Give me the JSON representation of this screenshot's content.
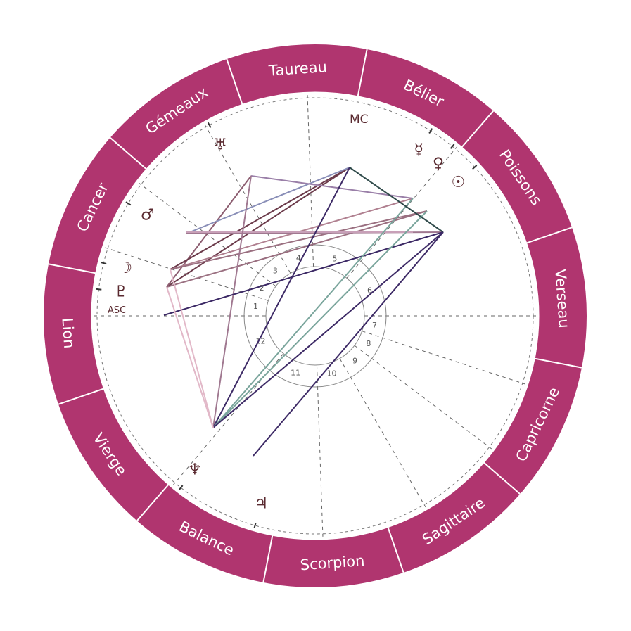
{
  "zodiac": {
    "color": "#b0356f",
    "signs": [
      {
        "label": "Taureau",
        "angle": 94
      },
      {
        "label": "Bélier",
        "angle": 64
      },
      {
        "label": "Poissons",
        "angle": 34
      },
      {
        "label": "Verseau",
        "angle": 4
      },
      {
        "label": "Capricorne",
        "angle": -26
      },
      {
        "label": "Sagittaire",
        "angle": -56
      },
      {
        "label": "Scorpion",
        "angle": -86
      },
      {
        "label": "Balance",
        "angle": -116
      },
      {
        "label": "Vierge",
        "angle": -146
      },
      {
        "label": "Lion",
        "angle": -176
      },
      {
        "label": "Cancer",
        "angle": 154
      },
      {
        "label": "Gémeaux",
        "angle": 124
      }
    ]
  },
  "axes": {
    "asc": "ASC",
    "mc": "MC"
  },
  "houses": {
    "cusps": [
      180,
      162,
      143,
      120,
      92,
      50,
      0,
      342,
      323,
      300,
      272,
      230
    ],
    "numbers": [
      "1",
      "2",
      "3",
      "4",
      "5",
      "6",
      "7",
      "8",
      "9",
      "10",
      "11",
      "12"
    ]
  },
  "planets": [
    {
      "name": "uranus-icon",
      "symbol": "♅",
      "angle": 119
    },
    {
      "name": "mercury-icon",
      "symbol": "☿",
      "angle": 58
    },
    {
      "name": "venus-icon",
      "symbol": "♀",
      "angle": 51
    },
    {
      "name": "sun-icon",
      "symbol": "☉",
      "angle": 43
    },
    {
      "name": "mars-icon",
      "symbol": "♂",
      "angle": 149
    },
    {
      "name": "moon-icon",
      "symbol": "☽",
      "angle": 166
    },
    {
      "name": "pluto-icon",
      "symbol": "♇",
      "angle": 173
    },
    {
      "name": "neptune-icon",
      "symbol": "♆",
      "angle": 232
    },
    {
      "name": "jupiter-icon",
      "symbol": "♃",
      "angle": 254
    }
  ],
  "aspects": [
    {
      "from": [
        237,
        408
      ],
      "to": [
        497,
        238
      ],
      "color": "#6b3a4a"
    },
    {
      "from": [
        237,
        408
      ],
      "to": [
        607,
        300
      ],
      "color": "#9a6f80"
    },
    {
      "from": [
        237,
        408
      ],
      "to": [
        357,
        250
      ],
      "color": "#8c5d70"
    },
    {
      "from": [
        242,
        383
      ],
      "to": [
        497,
        238
      ],
      "color": "#6b3a4a"
    },
    {
      "from": [
        242,
        383
      ],
      "to": [
        587,
        282
      ],
      "color": "#b08090"
    },
    {
      "from": [
        242,
        383
      ],
      "to": [
        607,
        300
      ],
      "color": "#9a6f80"
    },
    {
      "from": [
        265,
        332
      ],
      "to": [
        497,
        238
      ],
      "color": "#8a8fb8"
    },
    {
      "from": [
        265,
        332
      ],
      "to": [
        630,
        330
      ],
      "color": "#a07890"
    },
    {
      "from": [
        265,
        330
      ],
      "to": [
        587,
        330
      ],
      "color": "#c8a0b8"
    },
    {
      "from": [
        357,
        250
      ],
      "to": [
        587,
        282
      ],
      "color": "#9a7fa8"
    },
    {
      "from": [
        357,
        250
      ],
      "to": [
        303,
        608
      ],
      "color": "#a07890"
    },
    {
      "from": [
        233,
        448
      ],
      "to": [
        630,
        330
      ],
      "color": "#3d2a66"
    },
    {
      "from": [
        303,
        608
      ],
      "to": [
        497,
        238
      ],
      "color": "#3d2a66"
    },
    {
      "from": [
        303,
        608
      ],
      "to": [
        587,
        282
      ],
      "color": "#7aa59c"
    },
    {
      "from": [
        303,
        608
      ],
      "to": [
        607,
        300
      ],
      "color": "#7aa59c"
    },
    {
      "from": [
        303,
        608
      ],
      "to": [
        630,
        330
      ],
      "color": "#3d2a66"
    },
    {
      "from": [
        303,
        608
      ],
      "to": [
        237,
        408
      ],
      "color": "#e2b8c8"
    },
    {
      "from": [
        303,
        608
      ],
      "to": [
        242,
        383
      ],
      "color": "#e2b8c8"
    },
    {
      "from": [
        497,
        238
      ],
      "to": [
        630,
        330
      ],
      "color": "#2f4a4a"
    },
    {
      "from": [
        360,
        648
      ],
      "to": [
        630,
        330
      ],
      "color": "#3d2a66"
    }
  ]
}
